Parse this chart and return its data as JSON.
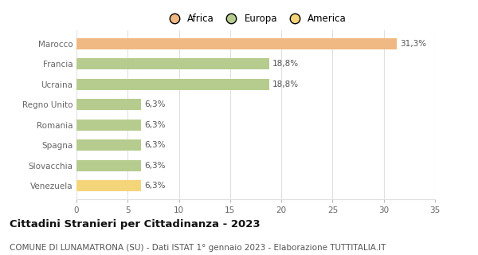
{
  "categories": [
    "Venezuela",
    "Slovacchia",
    "Spagna",
    "Romania",
    "Regno Unito",
    "Ucraina",
    "Francia",
    "Marocco"
  ],
  "values": [
    6.3,
    6.3,
    6.3,
    6.3,
    6.3,
    18.8,
    18.8,
    31.3
  ],
  "colors": [
    "#f5d57a",
    "#b5cc8e",
    "#b5cc8e",
    "#b5cc8e",
    "#b5cc8e",
    "#b5cc8e",
    "#b5cc8e",
    "#f0b882"
  ],
  "labels": [
    "6,3%",
    "6,3%",
    "6,3%",
    "6,3%",
    "6,3%",
    "18,8%",
    "18,8%",
    "31,3%"
  ],
  "legend_items": [
    {
      "label": "Africa",
      "color": "#f0b882"
    },
    {
      "label": "Europa",
      "color": "#b5cc8e"
    },
    {
      "label": "America",
      "color": "#f5d57a"
    }
  ],
  "title": "Cittadini Stranieri per Cittadinanza - 2023",
  "subtitle": "COMUNE DI LUNAMATRONA (SU) - Dati ISTAT 1° gennaio 2023 - Elaborazione TUTTITALIA.IT",
  "xlim": [
    0,
    35
  ],
  "xticks": [
    0,
    5,
    10,
    15,
    20,
    25,
    30,
    35
  ],
  "background_color": "#ffffff",
  "plot_bg_color": "#ffffff",
  "grid_color": "#e0e0e0",
  "bar_height": 0.55,
  "label_fontsize": 7.5,
  "tick_fontsize": 7.5,
  "title_fontsize": 9.5,
  "subtitle_fontsize": 7.5,
  "legend_fontsize": 8.5,
  "value_label_color": "#555555",
  "tick_label_color": "#666666"
}
